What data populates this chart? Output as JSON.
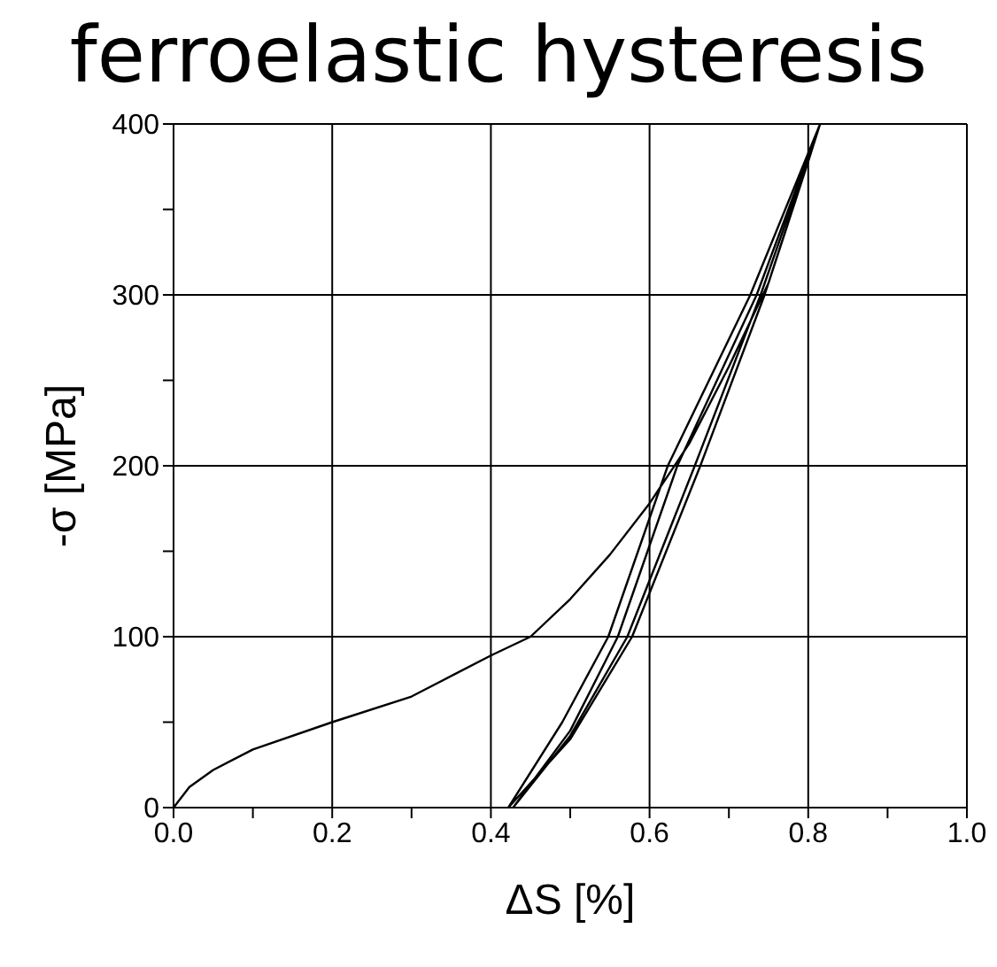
{
  "chart_data": {
    "type": "line",
    "title": "ferroelastic hysteresis",
    "xlabel": "ΔS [%]",
    "ylabel": "-σ [MPa]",
    "xlim": [
      0,
      1
    ],
    "ylim": [
      0,
      400
    ],
    "xticks": [
      {
        "value": 0,
        "label": "0.0"
      },
      {
        "value": 0.1,
        "label": null
      },
      {
        "value": 0.2,
        "label": "0.2"
      },
      {
        "value": 0.3,
        "label": null
      },
      {
        "value": 0.4,
        "label": "0.4"
      },
      {
        "value": 0.5,
        "label": null
      },
      {
        "value": 0.6,
        "label": "0.6"
      },
      {
        "value": 0.7,
        "label": null
      },
      {
        "value": 0.8,
        "label": "0.8"
      },
      {
        "value": 0.9,
        "label": null
      },
      {
        "value": 1,
        "label": "1.0"
      }
    ],
    "yticks": [
      0,
      {
        "value": 50,
        "label": null
      },
      100,
      {
        "value": 150,
        "label": null
      },
      200,
      {
        "value": 250,
        "label": null
      },
      300,
      {
        "value": 350,
        "label": null
      },
      400
    ],
    "grid": true,
    "marker": "none",
    "line_style": "solid",
    "series": [
      {
        "color": "#000000",
        "x": [
          0,
          0.02,
          0.05,
          0.1,
          0.2,
          0.3,
          0.4,
          0.45,
          0.5,
          0.55,
          0.6,
          0.65,
          0.7,
          0.75,
          0.8,
          0.815,
          0.727,
          0.623,
          0.548,
          0.49,
          0.422,
          0.5,
          0.578,
          0.664,
          0.745,
          0.815,
          0.735,
          0.635,
          0.56,
          0.5,
          0.428,
          0.5,
          0.572,
          0.657,
          0.74,
          0.815
        ],
        "values": [
          0,
          12,
          22,
          34,
          50,
          65,
          89,
          100,
          122,
          148,
          178,
          213,
          258,
          307,
          378,
          400,
          300,
          200,
          100,
          50,
          0,
          40,
          100,
          200,
          300,
          400,
          300,
          200,
          100,
          45,
          0,
          42,
          100,
          200,
          300,
          400
        ]
      }
    ]
  }
}
